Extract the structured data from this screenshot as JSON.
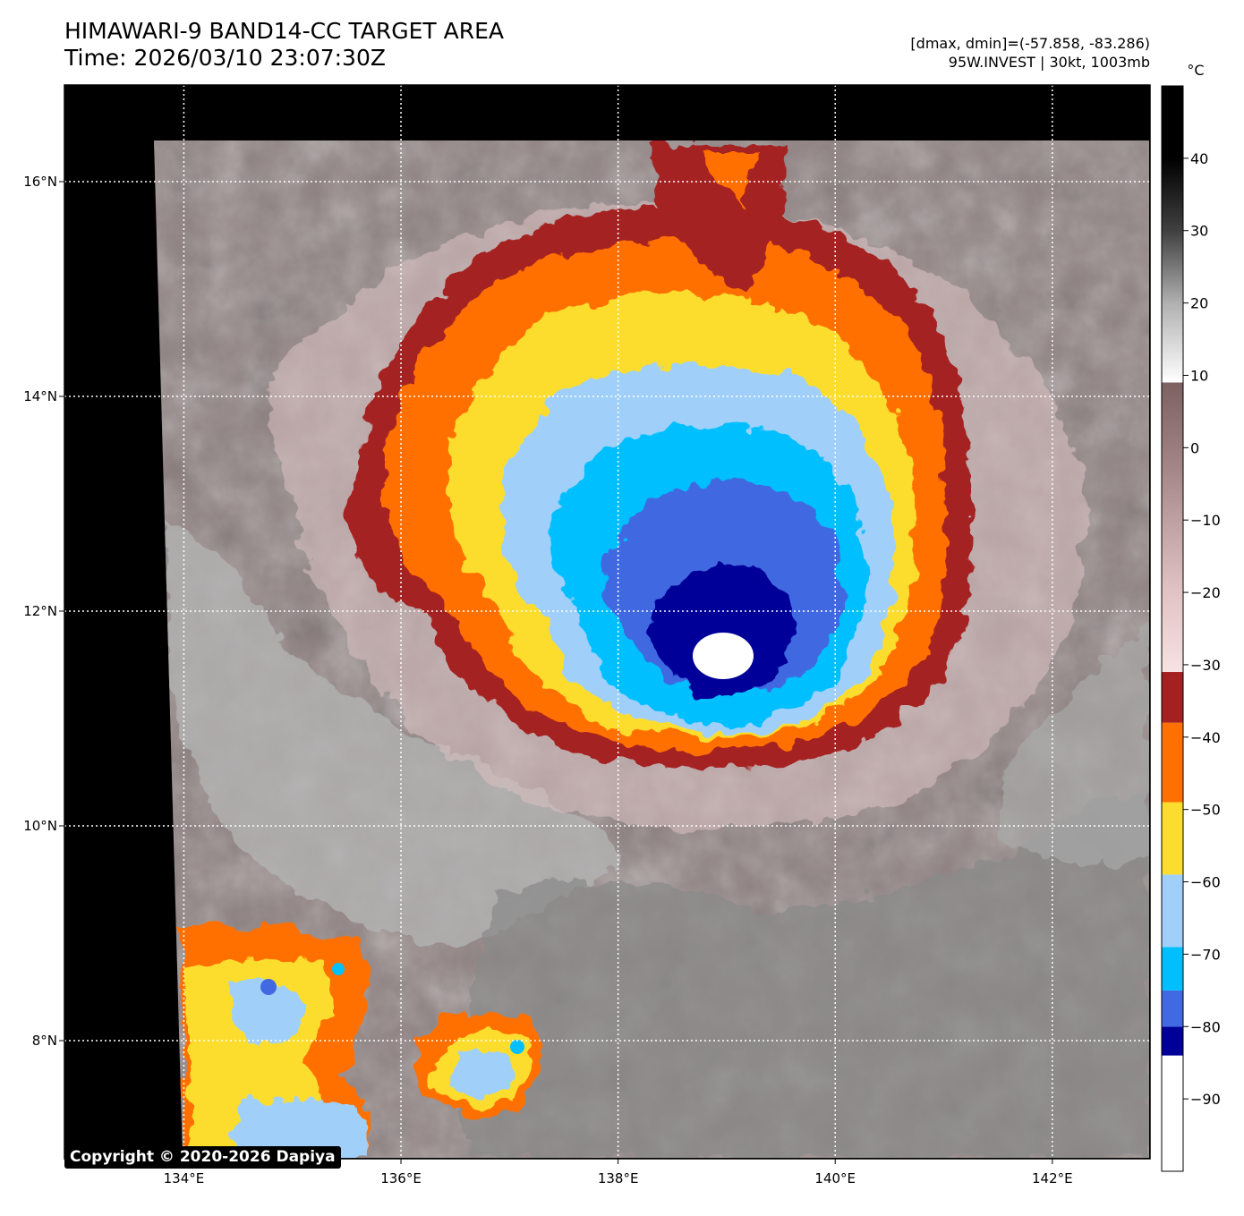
{
  "header": {
    "title_line1": "HIMAWARI-9 BAND14-CC TARGET AREA",
    "title_line2": "Time: 2026/03/10 23:07:30Z",
    "stats": "[dmax, dmin]=(-57.858, -83.286)",
    "storm": "95W.INVEST | 30kt, 1003mb"
  },
  "map": {
    "lon_range": [
      132.9,
      142.9
    ],
    "lat_range": [
      6.9,
      16.9
    ],
    "lon_ticks": [
      134,
      136,
      138,
      140,
      142
    ],
    "lat_ticks": [
      8,
      10,
      12,
      14,
      16
    ],
    "lon_labels": [
      "134°E",
      "136°E",
      "138°E",
      "140°E",
      "142°E"
    ],
    "lat_labels": [
      "8°N",
      "10°N",
      "12°N",
      "14°N",
      "16°N"
    ],
    "storm_center": {
      "lon": 139.0,
      "lat": 11.7
    }
  },
  "colorbar": {
    "unit": "°C",
    "min": -100,
    "max": 50,
    "ticks": [
      40,
      30,
      20,
      10,
      0,
      -10,
      -20,
      -30,
      -40,
      -50,
      -60,
      -70,
      -80,
      -90
    ],
    "tick_labels": [
      "40",
      "30",
      "20",
      "10",
      "0",
      "−10",
      "−20",
      "−30",
      "−40",
      "−50",
      "−60",
      "−70",
      "−80",
      "−90"
    ],
    "bands": [
      {
        "from": -100,
        "to": -84,
        "color": "#ffffff"
      },
      {
        "from": -84,
        "to": -80,
        "color": "#000099"
      },
      {
        "from": -80,
        "to": -75,
        "color": "#4169e1"
      },
      {
        "from": -75,
        "to": -69,
        "color": "#00bfff"
      },
      {
        "from": -69,
        "to": -59,
        "color": "#a0d0fa"
      },
      {
        "from": -59,
        "to": -49,
        "color": "#fcdd2f"
      },
      {
        "from": -49,
        "to": -38,
        "color": "#ff7000"
      },
      {
        "from": -38,
        "to": -31,
        "color": "#a52121"
      }
    ],
    "gradient_warm": [
      {
        "at": -31,
        "color": "#f7e2e2"
      },
      {
        "at": -20,
        "color": "#e2c3c3"
      },
      {
        "at": -10,
        "color": "#bfa0a0"
      },
      {
        "at": 0,
        "color": "#9a7c7c"
      },
      {
        "at": 9,
        "color": "#7d6262"
      },
      {
        "at": 9.01,
        "color": "#ffffff"
      },
      {
        "at": 20,
        "color": "#b0b0b0"
      },
      {
        "at": 30,
        "color": "#404040"
      },
      {
        "at": 40,
        "color": "#000000"
      },
      {
        "at": 50,
        "color": "#000000"
      }
    ]
  },
  "copyright": "Copyright © 2020-2026 Dapiya"
}
